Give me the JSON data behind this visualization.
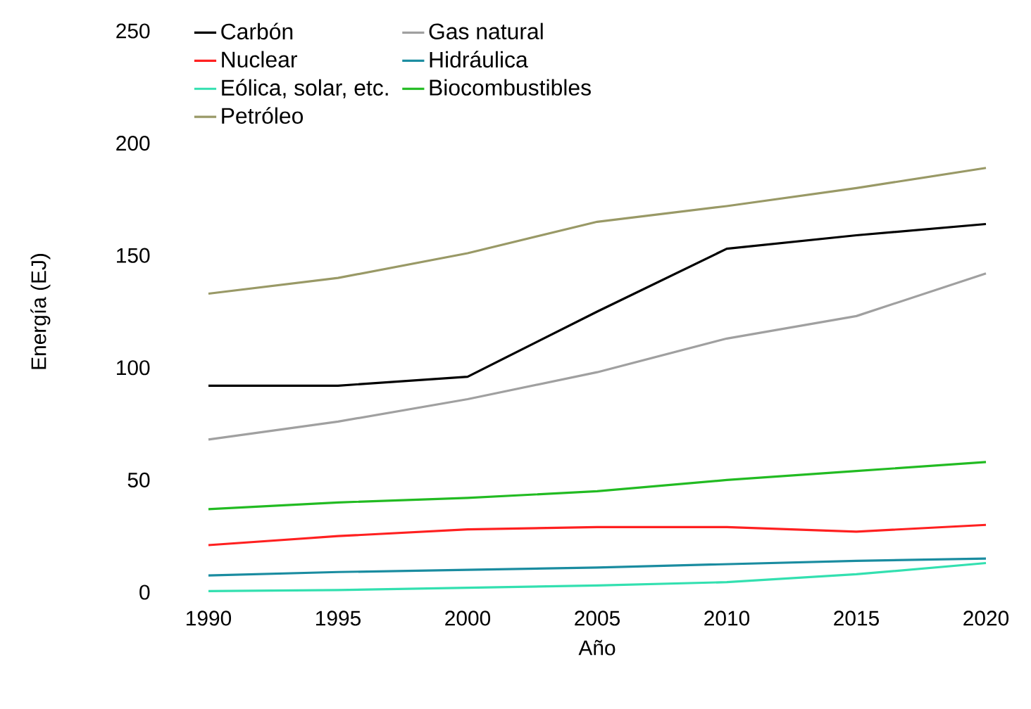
{
  "chart_data": {
    "type": "line",
    "xlabel": "Año",
    "ylabel": "Energía (EJ)",
    "x": [
      1990,
      1995,
      2000,
      2005,
      2010,
      2015,
      2020
    ],
    "xlim": [
      1990,
      2020
    ],
    "xticks": [
      1990,
      1995,
      2000,
      2005,
      2010,
      2015,
      2020
    ],
    "ylim": [
      0,
      250
    ],
    "yticks": [
      0,
      50,
      100,
      150,
      200,
      250
    ],
    "legend": "top left",
    "marker": "none",
    "line_style": "solid",
    "grid": false,
    "series": [
      {
        "name": "Carbón",
        "color": "#000000",
        "values": [
          92,
          92,
          96,
          125,
          153,
          159,
          164
        ]
      },
      {
        "name": "Gas natural",
        "color": "#a0a0a0",
        "values": [
          68,
          76,
          86,
          98,
          113,
          123,
          142
        ]
      },
      {
        "name": "Nuclear",
        "color": "#ff2020",
        "values": [
          21,
          25,
          28,
          29,
          29,
          27,
          30
        ]
      },
      {
        "name": "Hidráulica",
        "color": "#1a8ca0",
        "values": [
          7.5,
          9,
          10,
          11,
          12.5,
          14,
          15
        ]
      },
      {
        "name": "Eólica, solar, etc.",
        "color": "#33e0b0",
        "values": [
          0.5,
          1,
          2,
          3,
          4.5,
          8,
          13
        ]
      },
      {
        "name": "Biocombustibles",
        "color": "#22bb22",
        "values": [
          37,
          40,
          42,
          45,
          50,
          54,
          58
        ]
      },
      {
        "name": "Petróleo",
        "color": "#999966",
        "values": [
          133,
          140,
          151,
          165,
          172,
          180,
          189
        ]
      }
    ]
  }
}
